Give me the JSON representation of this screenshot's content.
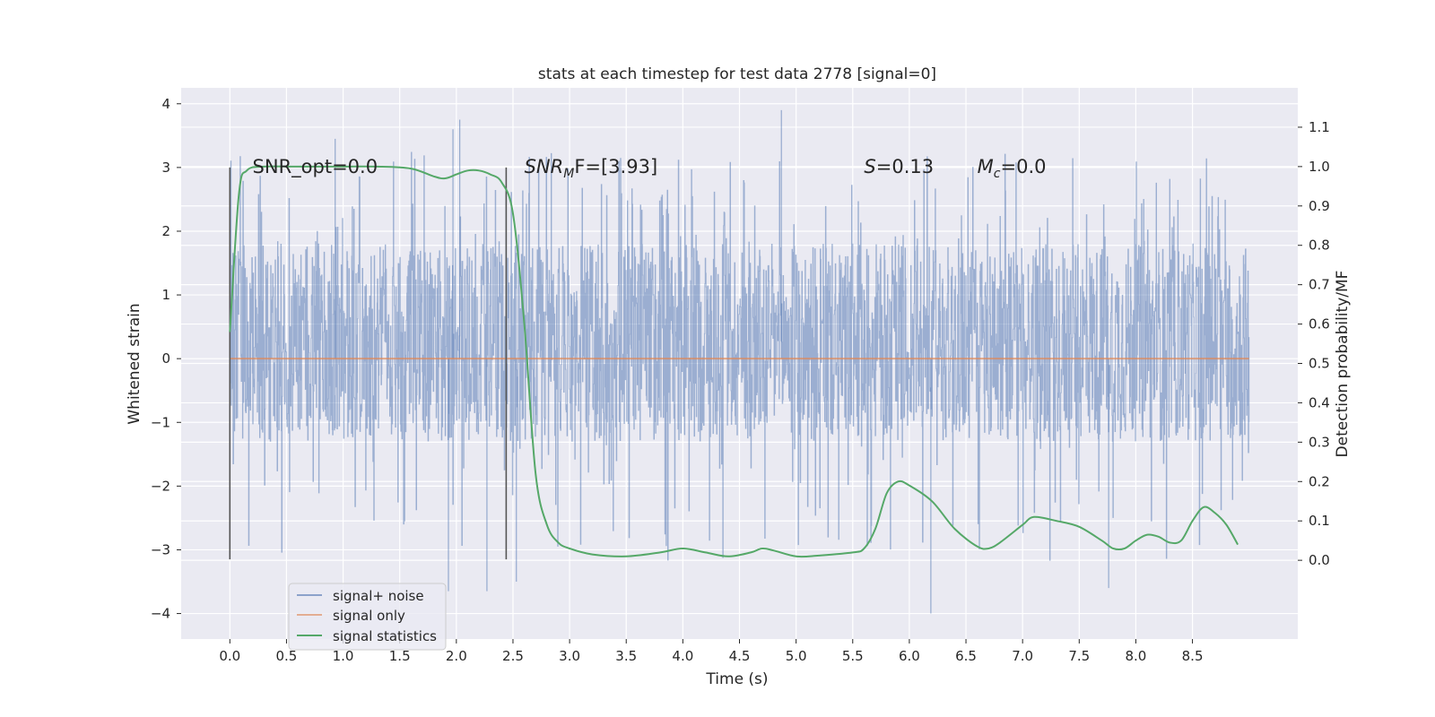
{
  "chart_data": {
    "type": "line",
    "title": "stats at each timestep for test data 2778 [signal=0]",
    "xlabel": "Time (s)",
    "ylabel_left": "Whitened strain",
    "ylabel_right": "Detection probability/MF",
    "xlim": [
      -0.43,
      9.43
    ],
    "ylim_left": [
      -4.4,
      4.25
    ],
    "ylim_right": [
      -0.2,
      1.2
    ],
    "x_ticks": [
      "0.0",
      "0.5",
      "1.0",
      "1.5",
      "2.0",
      "2.5",
      "3.0",
      "3.5",
      "4.0",
      "4.5",
      "5.0",
      "5.5",
      "6.0",
      "6.5",
      "7.0",
      "7.5",
      "8.0",
      "8.5"
    ],
    "y_left_ticks": [
      "−4",
      "−3",
      "−2",
      "−1",
      "0",
      "1",
      "2",
      "3",
      "4"
    ],
    "y_right_ticks": [
      "0.0",
      "0.1",
      "0.2",
      "0.3",
      "0.4",
      "0.5",
      "0.6",
      "0.7",
      "0.8",
      "0.9",
      "1.0",
      "1.1"
    ],
    "grid": true,
    "legend_position": "lower-left",
    "colors": {
      "background": "#eaeaf2",
      "noise": "#4c72b0",
      "signal_only": "#dd8452",
      "statistics": "#55a868",
      "marker": "#555555"
    },
    "series": [
      {
        "name": "signal+ noise",
        "axis": "left",
        "style": "dense-noise",
        "x_range": [
          0.0,
          9.0
        ],
        "typical_range": [
          -1.3,
          1.8
        ],
        "extremes": [
          -4.0,
          3.9
        ]
      },
      {
        "name": "signal only",
        "axis": "left",
        "x": [
          0.0,
          9.0
        ],
        "y": [
          0.0,
          0.0
        ]
      },
      {
        "name": "signal statistics",
        "axis": "right",
        "x": [
          0.0,
          0.08,
          0.15,
          0.3,
          0.6,
          1.0,
          1.3,
          1.6,
          1.8,
          1.9,
          2.0,
          2.1,
          2.2,
          2.3,
          2.4,
          2.5,
          2.6,
          2.7,
          2.8,
          2.9,
          3.0,
          3.2,
          3.5,
          3.8,
          4.0,
          4.2,
          4.4,
          4.6,
          4.7,
          4.8,
          5.0,
          5.2,
          5.5,
          5.6,
          5.7,
          5.8,
          5.9,
          6.0,
          6.2,
          6.4,
          6.6,
          6.7,
          6.8,
          7.0,
          7.1,
          7.3,
          7.5,
          7.7,
          7.8,
          7.9,
          8.0,
          8.1,
          8.2,
          8.3,
          8.4,
          8.5,
          8.6,
          8.7,
          8.8,
          8.9
        ],
        "y": [
          0.58,
          0.93,
          0.99,
          1.0,
          1.0,
          1.0,
          1.0,
          0.995,
          0.975,
          0.97,
          0.98,
          0.99,
          0.99,
          0.98,
          0.96,
          0.88,
          0.6,
          0.22,
          0.09,
          0.045,
          0.03,
          0.015,
          0.01,
          0.02,
          0.03,
          0.02,
          0.01,
          0.02,
          0.03,
          0.025,
          0.01,
          0.012,
          0.02,
          0.03,
          0.08,
          0.17,
          0.2,
          0.19,
          0.15,
          0.08,
          0.035,
          0.03,
          0.045,
          0.09,
          0.11,
          0.1,
          0.085,
          0.05,
          0.03,
          0.03,
          0.05,
          0.065,
          0.06,
          0.045,
          0.05,
          0.1,
          0.135,
          0.12,
          0.09,
          0.04
        ]
      }
    ],
    "markers": [
      {
        "x": 0.0,
        "y_from": -3.15,
        "y_to": 3.0
      },
      {
        "x": 2.44,
        "y_from": -3.15,
        "y_to": 3.0
      }
    ],
    "annotations": [
      {
        "id": "snr-opt",
        "x": 0.2,
        "y": 3.0,
        "text": "SNR_opt=0.0"
      },
      {
        "id": "snr-mf",
        "x": 2.6,
        "y": 3.0,
        "base": "SNR",
        "sub": "M",
        "rest": "F=[3.93]"
      },
      {
        "id": "s-stat",
        "x": 5.6,
        "y": 3.0,
        "base": "S",
        "rest": "=0.13"
      },
      {
        "id": "mc",
        "x": 6.6,
        "y": 3.0,
        "base": "M",
        "sub": "c",
        "rest": "=0.0"
      }
    ]
  }
}
